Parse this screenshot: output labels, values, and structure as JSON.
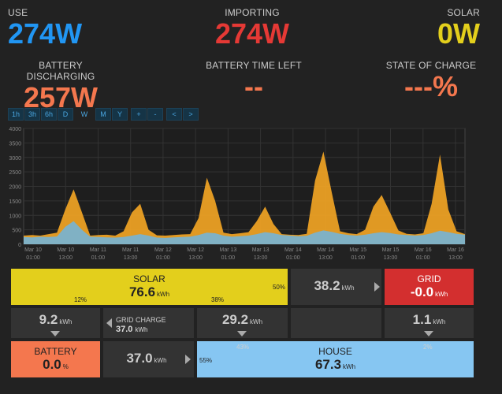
{
  "stats": {
    "use": {
      "label": "USE",
      "value": "274W",
      "color": "#2196f3"
    },
    "importing": {
      "label": "IMPORTING",
      "value": "274W",
      "color": "#e53935"
    },
    "solar": {
      "label": "SOLAR",
      "value": "0W",
      "color": "#e3cf1c"
    },
    "battery_discharging": {
      "label": "BATTERY DISCHARGING",
      "value": "257W",
      "color": "#f4774e"
    },
    "battery_time_left": {
      "label": "BATTERY TIME LEFT",
      "value": "--",
      "color": "#f4774e"
    },
    "state_of_charge": {
      "label": "STATE OF CHARGE",
      "value": "---%",
      "color": "#f4774e"
    }
  },
  "toolbar": [
    "1h",
    "3h",
    "6h",
    "D",
    "W",
    "M",
    "Y",
    "+",
    "-",
    "<",
    ">"
  ],
  "toolbar_selected": "W",
  "chart_data": {
    "type": "area",
    "ylim": [
      0,
      4000
    ],
    "yticks": [
      "0",
      "500",
      "1000",
      "1500",
      "2000",
      "2500",
      "3000",
      "3500",
      "4000"
    ],
    "xticks": [
      [
        "Mar 10",
        "01:00"
      ],
      [
        "Mar 10",
        "13:00"
      ],
      [
        "Mar 11",
        "01:00"
      ],
      [
        "Mar 11",
        "13:00"
      ],
      [
        "Mar 12",
        "01:00"
      ],
      [
        "Mar 12",
        "13:00"
      ],
      [
        "Mar 13",
        "01:00"
      ],
      [
        "Mar 13",
        "13:00"
      ],
      [
        "Mar 14",
        "01:00"
      ],
      [
        "Mar 14",
        "13:00"
      ],
      [
        "Mar 15",
        "01:00"
      ],
      [
        "Mar 15",
        "13:00"
      ],
      [
        "Mar 16",
        "01:00"
      ],
      [
        "Mar 16",
        "13:00"
      ]
    ],
    "series": [
      {
        "values": [
          300,
          320,
          300,
          350,
          400,
          1200,
          1900,
          1100,
          300,
          320,
          330,
          300,
          450,
          1100,
          1400,
          500,
          310,
          300,
          320,
          340,
          350,
          900,
          2300,
          1500,
          400,
          350,
          380,
          420,
          800,
          1300,
          700,
          350,
          330,
          320,
          360,
          2200,
          3200,
          1800,
          450,
          380,
          350,
          500,
          1300,
          1700,
          1100,
          480,
          360,
          340,
          380,
          1400,
          3100,
          1200,
          450,
          350
        ]
      },
      {
        "values": [
          250,
          240,
          260,
          250,
          270,
          600,
          800,
          500,
          260,
          250,
          240,
          230,
          250,
          300,
          350,
          300,
          230,
          220,
          240,
          250,
          260,
          320,
          400,
          380,
          300,
          260,
          280,
          300,
          350,
          420,
          380,
          320,
          300,
          280,
          290,
          400,
          480,
          430,
          360,
          320,
          300,
          330,
          380,
          420,
          390,
          340,
          320,
          300,
          320,
          380,
          470,
          420,
          360,
          330
        ]
      }
    ],
    "colors": [
      "#f5a623",
      "#6fb5e0"
    ]
  },
  "flow": {
    "solar": {
      "title": "SOLAR",
      "value": "76.6",
      "unit": "kWh",
      "pct_right": "50%",
      "pct_left_bottom": "12%",
      "pct_mid_bottom": "38%"
    },
    "solar_to_grid": {
      "value": "38.2",
      "unit": "kWh"
    },
    "grid": {
      "title": "GRID",
      "value": "-0.0",
      "unit": "kWh"
    },
    "solar_to_battery": {
      "value": "9.2",
      "unit": "kWh"
    },
    "grid_charge": {
      "title": "GRID CHARGE",
      "value": "37.0",
      "unit": "kWh"
    },
    "solar_to_house": {
      "value": "29.2",
      "unit": "kWh"
    },
    "grid_to_house": {
      "value": "1.1",
      "unit": "kWh"
    },
    "battery": {
      "title": "BATTERY",
      "value": "0.0",
      "unit": "%"
    },
    "battery_to_house": {
      "value": "37.0",
      "unit": "kWh"
    },
    "house": {
      "title": "HOUSE",
      "value": "67.3",
      "unit": "kWh",
      "pct_left": "55%",
      "pct_top_left": "43%",
      "pct_top_right": "2%"
    }
  }
}
